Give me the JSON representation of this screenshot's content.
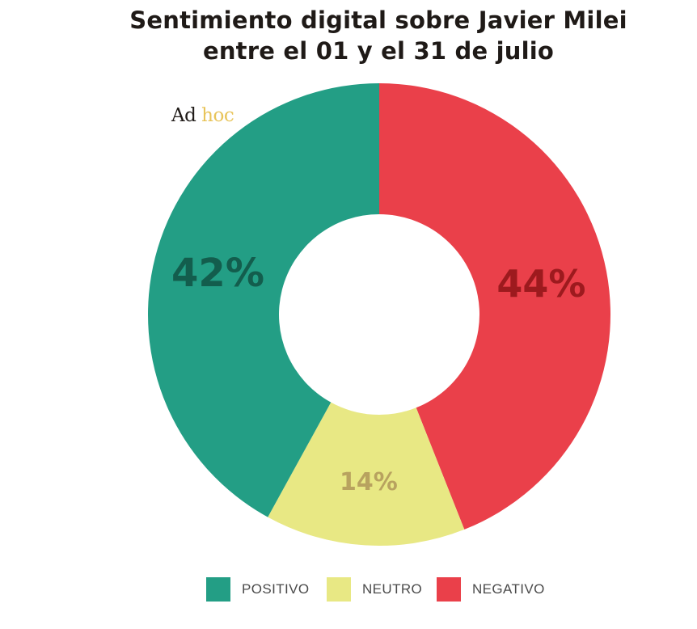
{
  "header": {
    "title_line1": "Sentimiento digital sobre Javier Milei",
    "title_line2": "entre el 01 y el 31 de julio"
  },
  "brand": {
    "part1": "Ad",
    "part2": "hoc"
  },
  "chart_data": {
    "type": "pie",
    "donut": true,
    "title": "Sentimiento digital sobre Javier Milei entre el 01 y el 31 de julio",
    "legend_position": "bottom",
    "slices": [
      {
        "name": "NEGATIVO",
        "value": 44,
        "label": "44%",
        "color": "#ea404a",
        "label_color": "#9d1a1e"
      },
      {
        "name": "NEUTRO",
        "value": 14,
        "label": "14%",
        "color": "#e8e884",
        "label_color": "#b8a25f"
      },
      {
        "name": "POSITIVO",
        "value": 42,
        "label": "42%",
        "color": "#239e85",
        "label_color": "#135d4d"
      }
    ]
  },
  "legend": {
    "items": [
      {
        "label": "POSITIVO",
        "color": "#239e85"
      },
      {
        "label": "NEUTRO",
        "color": "#e8e884"
      },
      {
        "label": "NEGATIVO",
        "color": "#ea404a"
      }
    ]
  }
}
